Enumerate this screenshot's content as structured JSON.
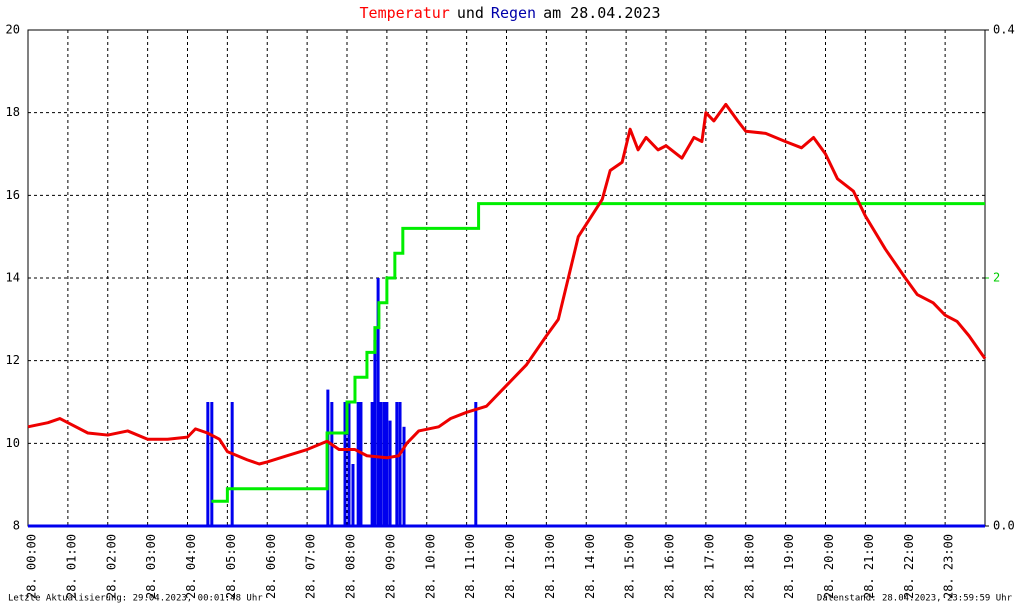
{
  "chart_data": {
    "type": "line",
    "title": [
      {
        "text": "Temperatur",
        "color": "#ff0000"
      },
      {
        "text": "und",
        "color": "#000000"
      },
      {
        "text": "Regen",
        "color": "#0000aa"
      },
      {
        "text": "am 28.04.2023",
        "color": "#000000"
      }
    ],
    "footer_left": "Letzte Aktualisierung: 29.04.2023, 00:01:48 Uhr",
    "footer_right": "Datenstand: 28.04.2023, 23:59:59 Uhr",
    "xlim": [
      0,
      24
    ],
    "xticks": [
      {
        "value": 0,
        "label": "28. 00:00"
      },
      {
        "value": 1,
        "label": "28. 01:00"
      },
      {
        "value": 2,
        "label": "28. 02:00"
      },
      {
        "value": 3,
        "label": "28. 03:00"
      },
      {
        "value": 4,
        "label": "28. 04:00"
      },
      {
        "value": 5,
        "label": "28. 05:00"
      },
      {
        "value": 6,
        "label": "28. 06:00"
      },
      {
        "value": 7,
        "label": "28. 07:00"
      },
      {
        "value": 8,
        "label": "28. 08:00"
      },
      {
        "value": 9,
        "label": "28. 09:00"
      },
      {
        "value": 10,
        "label": "28. 10:00"
      },
      {
        "value": 11,
        "label": "28. 11:00"
      },
      {
        "value": 12,
        "label": "28. 12:00"
      },
      {
        "value": 13,
        "label": "28. 13:00"
      },
      {
        "value": 14,
        "label": "28. 14:00"
      },
      {
        "value": 15,
        "label": "28. 15:00"
      },
      {
        "value": 16,
        "label": "28. 16:00"
      },
      {
        "value": 17,
        "label": "28. 17:00"
      },
      {
        "value": 18,
        "label": "28. 18:00"
      },
      {
        "value": 19,
        "label": "28. 19:00"
      },
      {
        "value": 20,
        "label": "28. 20:00"
      },
      {
        "value": 21,
        "label": "28. 21:00"
      },
      {
        "value": 22,
        "label": "28. 22:00"
      },
      {
        "value": 23,
        "label": "28. 23:00"
      }
    ],
    "ylim": [
      8,
      20
    ],
    "yticks": [
      8,
      10,
      12,
      14,
      16,
      18,
      20
    ],
    "y2lim": [
      0,
      0.4
    ],
    "y2ticks": [
      {
        "value": 0,
        "label": "0.0"
      },
      0.4
    ],
    "y3lim": [
      0,
      4
    ],
    "y3ticks": [
      2
    ],
    "y3color": "#00cc00",
    "grid": true,
    "series": [
      {
        "type": "bar",
        "axis": "y2",
        "color": "#0000ee",
        "x": [
          4.51,
          4.61,
          5.12,
          7.52,
          7.62,
          7.95,
          8.05,
          8.15,
          8.28,
          8.35,
          8.63,
          8.7,
          8.78,
          8.85,
          8.93,
          9.0,
          9.08,
          9.25,
          9.33,
          9.43,
          11.23
        ],
        "values": [
          0.1,
          0.1,
          0.1,
          0.11,
          0.1,
          0.1,
          0.1,
          0.05,
          0.1,
          0.1,
          0.1,
          0.15,
          0.2,
          0.1,
          0.1,
          0.1,
          0.085,
          0.1,
          0.1,
          0.08,
          0.1
        ]
      },
      {
        "type": "step",
        "axis": "y3",
        "color": "#00ee00",
        "x": [
          4.6,
          5.0,
          7.5,
          8.0,
          8.2,
          8.5,
          8.7,
          8.8,
          9.0,
          9.2,
          9.4,
          11.3,
          24
        ],
        "values": [
          0.2,
          0.3,
          0.75,
          1.0,
          1.2,
          1.4,
          1.6,
          1.8,
          2.0,
          2.2,
          2.4,
          2.6,
          2.6
        ]
      },
      {
        "type": "line",
        "axis": "y",
        "color": "#ee0000",
        "x": [
          0,
          0.5,
          0.8,
          1.0,
          1.5,
          2,
          2.5,
          3,
          3.5,
          4,
          4.2,
          4.5,
          4.8,
          5,
          5.5,
          5.8,
          6,
          6.5,
          7,
          7.5,
          7.8,
          8.2,
          8.5,
          9,
          9.3,
          9.5,
          9.8,
          10.3,
          10.6,
          11,
          11.5,
          12,
          12.5,
          13,
          13.3,
          13.6,
          13.8,
          14,
          14.4,
          14.6,
          14.9,
          15.0,
          15.1,
          15.3,
          15.5,
          15.8,
          16.0,
          16.4,
          16.7,
          16.9,
          17.0,
          17.2,
          17.5,
          17.8,
          18.0,
          18.5,
          19.0,
          19.4,
          19.7,
          20.0,
          20.3,
          20.7,
          21.0,
          21.5,
          22,
          22.3,
          22.7,
          23,
          23.3,
          23.6,
          24
        ],
        "values": [
          10.4,
          10.5,
          10.6,
          10.5,
          10.25,
          10.2,
          10.3,
          10.1,
          10.1,
          10.15,
          10.35,
          10.25,
          10.1,
          9.8,
          9.6,
          9.5,
          9.55,
          9.7,
          9.85,
          10.05,
          9.85,
          9.85,
          9.7,
          9.65,
          9.7,
          10.0,
          10.3,
          10.4,
          10.6,
          10.75,
          10.9,
          11.4,
          11.9,
          12.6,
          13.0,
          14.2,
          15.0,
          15.3,
          15.9,
          16.6,
          16.8,
          17.2,
          17.6,
          17.1,
          17.4,
          17.1,
          17.2,
          16.9,
          17.4,
          17.3,
          18.0,
          17.8,
          18.2,
          17.8,
          17.55,
          17.5,
          17.3,
          17.15,
          17.4,
          17.0,
          16.4,
          16.1,
          15.5,
          14.7,
          14.0,
          13.6,
          13.4,
          13.1,
          12.95,
          12.6,
          12.05
        ]
      }
    ]
  }
}
